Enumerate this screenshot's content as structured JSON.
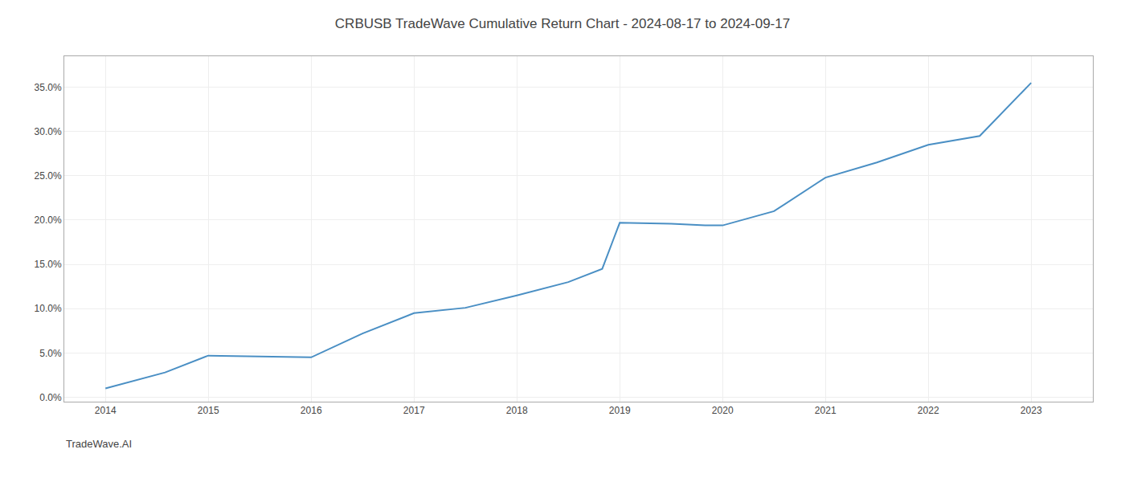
{
  "chart_data": {
    "type": "line",
    "title": "CRBUSB TradeWave Cumulative Return Chart - 2024-08-17 to 2024-09-17",
    "annotations": [
      "TradeWave.AI"
    ],
    "x": [
      2014.0,
      2014.58,
      2015.0,
      2015.5,
      2016.0,
      2016.5,
      2017.0,
      2017.5,
      2018.0,
      2018.5,
      2018.83,
      2019.0,
      2019.5,
      2019.83,
      2020.0,
      2020.5,
      2021.0,
      2021.5,
      2022.0,
      2022.5,
      2023.0
    ],
    "values": [
      0.01,
      0.028,
      0.047,
      0.046,
      0.045,
      0.072,
      0.095,
      0.101,
      0.115,
      0.13,
      0.145,
      0.197,
      0.196,
      0.194,
      0.194,
      0.21,
      0.248,
      0.265,
      0.285,
      0.295,
      0.355
    ],
    "color": "#4a8fc4",
    "xlim": [
      2013.6,
      2023.6
    ],
    "xticks": [
      2014,
      2015,
      2016,
      2017,
      2018,
      2019,
      2020,
      2021,
      2022,
      2023
    ],
    "ylim": [
      -0.005,
      0.385
    ],
    "yticks": [
      {
        "value": 0.0,
        "label": "0.0%"
      },
      {
        "value": 0.05,
        "label": "5.0%"
      },
      {
        "value": 0.1,
        "label": "10.0%"
      },
      {
        "value": 0.15,
        "label": "15.0%"
      },
      {
        "value": 0.2,
        "label": "20.0%"
      },
      {
        "value": 0.25,
        "label": "25.0%"
      },
      {
        "value": 0.3,
        "label": "30.0%"
      },
      {
        "value": 0.35,
        "label": "35.0%"
      }
    ],
    "grid": true
  }
}
